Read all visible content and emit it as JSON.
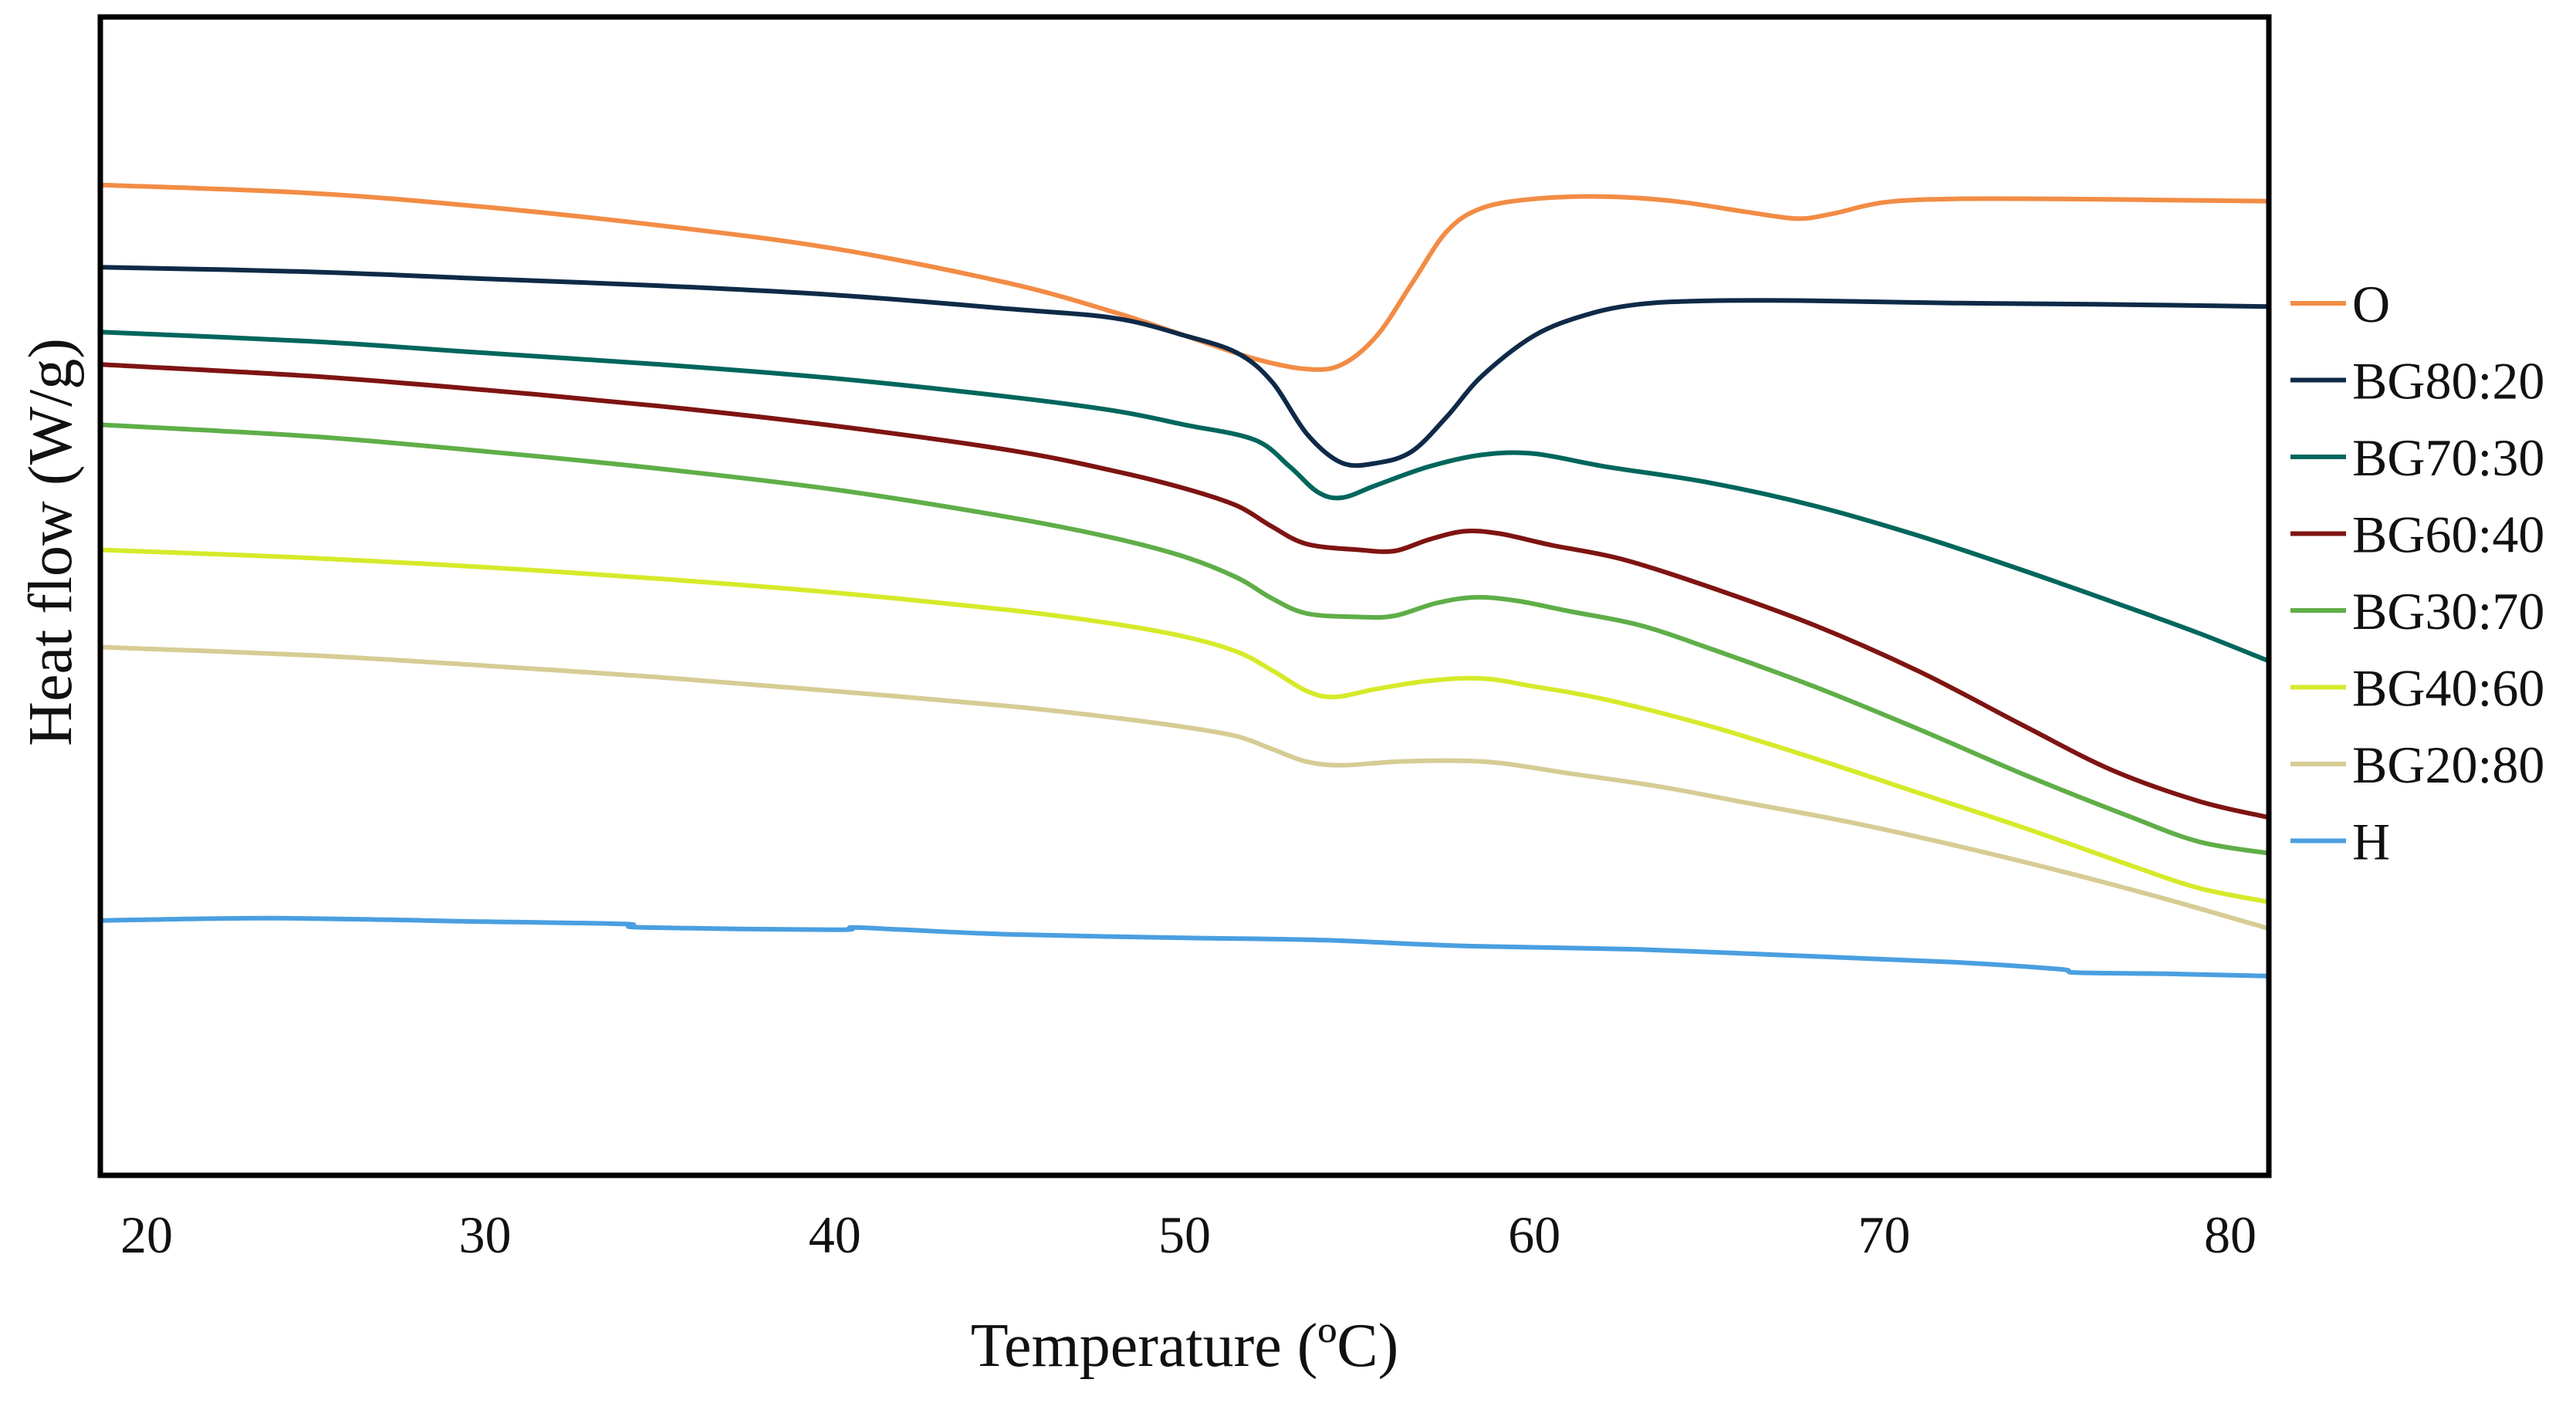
{
  "chart_data": {
    "type": "line",
    "title": "",
    "xlabel": "Temperature (ºC)",
    "ylabel": "Heat flow (W/g)",
    "xlim": [
      19,
      81
    ],
    "ylim": [
      0,
      100
    ],
    "xticks": [
      20,
      30,
      40,
      50,
      60,
      70,
      80
    ],
    "x_tick_labels": [
      "20",
      "30",
      "40",
      "50",
      "60",
      "70",
      "80"
    ],
    "y_tick_labels_shown": false,
    "grid": false,
    "legend_position": "right",
    "series": [
      {
        "name": "O",
        "color": "#f28c45",
        "points": [
          [
            19,
            85.5
          ],
          [
            25,
            84.8
          ],
          [
            30,
            83.6
          ],
          [
            35,
            82
          ],
          [
            40,
            80
          ],
          [
            45,
            77
          ],
          [
            48,
            74.5
          ],
          [
            50,
            72.5
          ],
          [
            52,
            70.5
          ],
          [
            53.5,
            69.6
          ],
          [
            54.5,
            70
          ],
          [
            55.5,
            72.5
          ],
          [
            56.5,
            77
          ],
          [
            57.5,
            81.5
          ],
          [
            58.5,
            83.5
          ],
          [
            60,
            84.3
          ],
          [
            62,
            84.5
          ],
          [
            64,
            84.1
          ],
          [
            66,
            83.2
          ],
          [
            67.5,
            82.6
          ],
          [
            68.5,
            83
          ],
          [
            70,
            84
          ],
          [
            72,
            84.3
          ],
          [
            75,
            84.3
          ],
          [
            78,
            84.2
          ],
          [
            81,
            84.1
          ]
        ]
      },
      {
        "name": "BG80:20",
        "color": "#0e2a48",
        "points": [
          [
            19,
            78.4
          ],
          [
            25,
            78
          ],
          [
            30,
            77.4
          ],
          [
            35,
            76.8
          ],
          [
            40,
            76
          ],
          [
            45,
            74.8
          ],
          [
            48,
            74
          ],
          [
            50,
            72.5
          ],
          [
            51.5,
            71
          ],
          [
            52.5,
            68.5
          ],
          [
            53.5,
            64
          ],
          [
            54.5,
            61.5
          ],
          [
            55.5,
            61.5
          ],
          [
            56.5,
            62.5
          ],
          [
            57.5,
            65.5
          ],
          [
            58.5,
            69
          ],
          [
            60,
            72.5
          ],
          [
            61.5,
            74.3
          ],
          [
            63,
            75.2
          ],
          [
            65,
            75.5
          ],
          [
            68,
            75.5
          ],
          [
            72,
            75.3
          ],
          [
            76,
            75.2
          ],
          [
            81,
            75
          ]
        ]
      },
      {
        "name": "BG70:30",
        "color": "#00665c",
        "points": [
          [
            19,
            72.8
          ],
          [
            25,
            72
          ],
          [
            30,
            71
          ],
          [
            35,
            70
          ],
          [
            40,
            68.8
          ],
          [
            45,
            67.2
          ],
          [
            48,
            66
          ],
          [
            50,
            64.8
          ],
          [
            52,
            63.5
          ],
          [
            53,
            61.2
          ],
          [
            53.8,
            59
          ],
          [
            54.5,
            58.5
          ],
          [
            55.5,
            59.6
          ],
          [
            57,
            61.2
          ],
          [
            58.5,
            62.2
          ],
          [
            60,
            62.3
          ],
          [
            62,
            61.2
          ],
          [
            65,
            59.8
          ],
          [
            68,
            57.8
          ],
          [
            71,
            55.2
          ],
          [
            74,
            52.2
          ],
          [
            77,
            49
          ],
          [
            79,
            46.8
          ],
          [
            81,
            44.4
          ]
        ]
      },
      {
        "name": "BG60:40",
        "color": "#7e1412",
        "points": [
          [
            19,
            70
          ],
          [
            25,
            69
          ],
          [
            30,
            67.8
          ],
          [
            35,
            66.4
          ],
          [
            40,
            64.7
          ],
          [
            45,
            62.6
          ],
          [
            48,
            60.8
          ],
          [
            50,
            59.3
          ],
          [
            51.5,
            57.8
          ],
          [
            52.5,
            56
          ],
          [
            53.5,
            54.5
          ],
          [
            55,
            54
          ],
          [
            56,
            53.9
          ],
          [
            57,
            54.9
          ],
          [
            58,
            55.6
          ],
          [
            59,
            55.4
          ],
          [
            60.5,
            54.4
          ],
          [
            62.5,
            53.2
          ],
          [
            65,
            50.8
          ],
          [
            68,
            47.5
          ],
          [
            71,
            43.5
          ],
          [
            74,
            38.8
          ],
          [
            76.5,
            35
          ],
          [
            79,
            32.3
          ],
          [
            81,
            30.9
          ]
        ]
      },
      {
        "name": "BG30:70",
        "color": "#5fae48",
        "points": [
          [
            19,
            64.8
          ],
          [
            25,
            63.8
          ],
          [
            30,
            62.5
          ],
          [
            35,
            61
          ],
          [
            40,
            59.2
          ],
          [
            45,
            56.8
          ],
          [
            48,
            55
          ],
          [
            50,
            53.4
          ],
          [
            51.5,
            51.6
          ],
          [
            52.5,
            49.8
          ],
          [
            53.5,
            48.5
          ],
          [
            55,
            48.2
          ],
          [
            56,
            48.3
          ],
          [
            57.2,
            49.4
          ],
          [
            58.3,
            49.9
          ],
          [
            59.5,
            49.6
          ],
          [
            61,
            48.7
          ],
          [
            63,
            47.5
          ],
          [
            65,
            45.5
          ],
          [
            68,
            42.2
          ],
          [
            71,
            38.5
          ],
          [
            74,
            34.6
          ],
          [
            77,
            31
          ],
          [
            79,
            28.8
          ],
          [
            81,
            27.8
          ]
        ]
      },
      {
        "name": "BG40:60",
        "color": "#d6ea2a",
        "points": [
          [
            19,
            54
          ],
          [
            25,
            53.3
          ],
          [
            30,
            52.5
          ],
          [
            35,
            51.5
          ],
          [
            40,
            50.3
          ],
          [
            45,
            48.8
          ],
          [
            48,
            47.6
          ],
          [
            50,
            46.5
          ],
          [
            51.5,
            45.2
          ],
          [
            52.5,
            43.6
          ],
          [
            53.5,
            41.8
          ],
          [
            54.3,
            41.3
          ],
          [
            55.5,
            42
          ],
          [
            57,
            42.7
          ],
          [
            58.5,
            42.9
          ],
          [
            60,
            42.2
          ],
          [
            62,
            41.1
          ],
          [
            65,
            38.8
          ],
          [
            68,
            36
          ],
          [
            71,
            33
          ],
          [
            74,
            30
          ],
          [
            77,
            26.8
          ],
          [
            79,
            24.8
          ],
          [
            81,
            23.6
          ]
        ]
      },
      {
        "name": "BG20:80",
        "color": "#d6cc94",
        "points": [
          [
            19,
            45.6
          ],
          [
            25,
            44.9
          ],
          [
            30,
            44
          ],
          [
            35,
            43
          ],
          [
            40,
            41.8
          ],
          [
            45,
            40.5
          ],
          [
            48,
            39.5
          ],
          [
            50,
            38.7
          ],
          [
            51.5,
            37.9
          ],
          [
            52.5,
            36.8
          ],
          [
            53.5,
            35.7
          ],
          [
            54.5,
            35.4
          ],
          [
            56,
            35.7
          ],
          [
            57.5,
            35.8
          ],
          [
            59,
            35.6
          ],
          [
            61,
            34.7
          ],
          [
            63.5,
            33.6
          ],
          [
            66,
            32.2
          ],
          [
            69,
            30.5
          ],
          [
            72,
            28.5
          ],
          [
            75,
            26.3
          ],
          [
            78,
            23.9
          ],
          [
            81,
            21.3
          ]
        ]
      },
      {
        "name": "H",
        "color": "#4a9fe0",
        "points": [
          [
            19,
            22
          ],
          [
            24,
            22.2
          ],
          [
            30,
            21.9
          ],
          [
            34,
            21.7
          ],
          [
            34.5,
            21.4
          ],
          [
            40,
            21.2
          ],
          [
            40.5,
            21.4
          ],
          [
            42,
            21.2
          ],
          [
            45,
            20.8
          ],
          [
            50,
            20.5
          ],
          [
            54,
            20.3
          ],
          [
            58,
            19.8
          ],
          [
            63,
            19.5
          ],
          [
            68,
            18.9
          ],
          [
            72,
            18.4
          ],
          [
            75,
            17.8
          ],
          [
            75.5,
            17.5
          ],
          [
            78,
            17.4
          ],
          [
            81,
            17.2
          ]
        ]
      }
    ]
  }
}
